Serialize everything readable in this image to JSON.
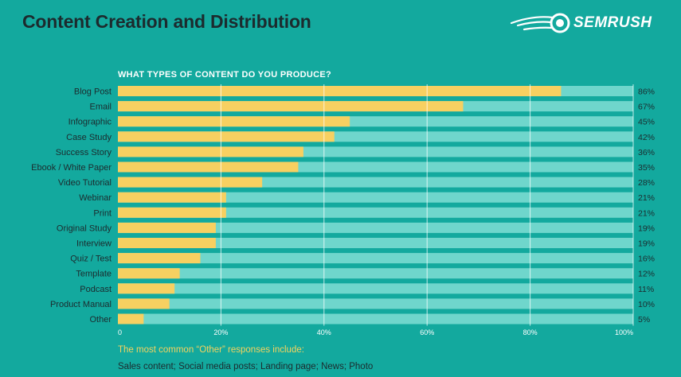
{
  "header": {
    "title": "Content Creation and Distribution",
    "brand": "SEMRUSH"
  },
  "chart_data": {
    "type": "bar",
    "orientation": "horizontal",
    "stacked_background": true,
    "title": "WHAT TYPES OF CONTENT DO YOU PRODUCE?",
    "xlabel": "",
    "ylabel": "",
    "xlim": [
      0,
      100
    ],
    "x_ticks": [
      "0",
      "20%",
      "40%",
      "60%",
      "80%",
      "100%"
    ],
    "categories": [
      "Blog Post",
      "Email",
      "Infographic",
      "Case Study",
      "Success Story",
      "Ebook / White Paper",
      "Video Tutorial",
      "Webinar",
      "Print",
      "Original Study",
      "Interview",
      "Quiz / Test",
      "Template",
      "Podcast",
      "Product Manual",
      "Other"
    ],
    "values": [
      86,
      67,
      45,
      42,
      36,
      35,
      28,
      21,
      21,
      19,
      19,
      16,
      12,
      11,
      10,
      5
    ],
    "value_labels": [
      "86%",
      "67%",
      "45%",
      "42%",
      "36%",
      "35%",
      "28%",
      "21%",
      "21%",
      "19%",
      "19%",
      "16%",
      "12%",
      "11%",
      "10%",
      "5%"
    ],
    "grid": true,
    "colors": {
      "bar": "#f7d061",
      "track": "#6fd6cc",
      "background": "#13a99e"
    }
  },
  "note": {
    "heading": "The most common “Other” responses include:",
    "body": "Sales content; Social media posts; Landing page; News; Photo"
  }
}
